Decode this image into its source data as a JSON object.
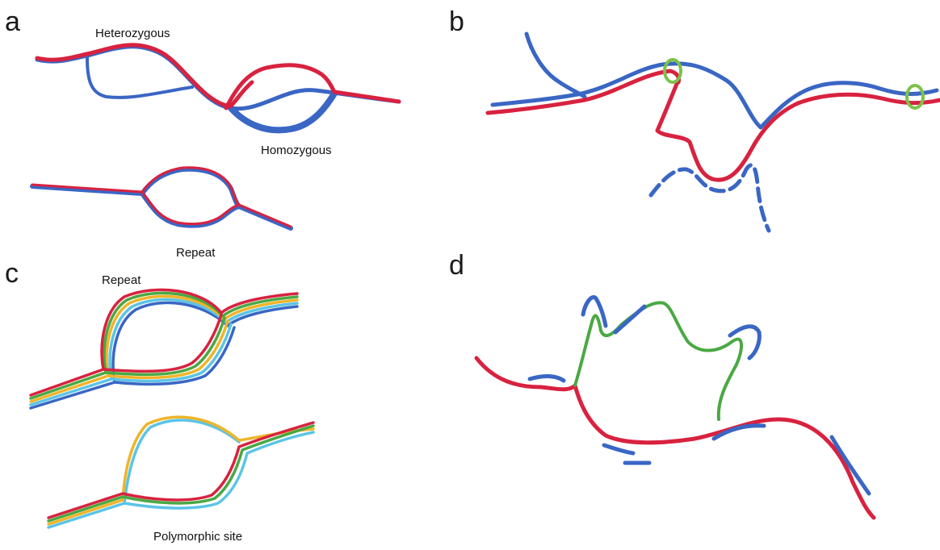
{
  "panels": [
    {
      "letter": "a",
      "labels": {
        "heterozygous": "Heterozygous",
        "homozygous": "Homozygous",
        "repeat": "Repeat"
      }
    },
    {
      "letter": "b"
    },
    {
      "letter": "c",
      "labels": {
        "repeat": "Repeat",
        "polymorphic": "Polymorphic site"
      }
    },
    {
      "letter": "d"
    }
  ],
  "colors": {
    "blue": "#3a66c4",
    "red": "#d8223f",
    "green": "#4aa843",
    "lightgreen": "#7cc24a",
    "yellow": "#f0b429",
    "cyan": "#5bc4e6",
    "olive": "#8fa83a"
  }
}
